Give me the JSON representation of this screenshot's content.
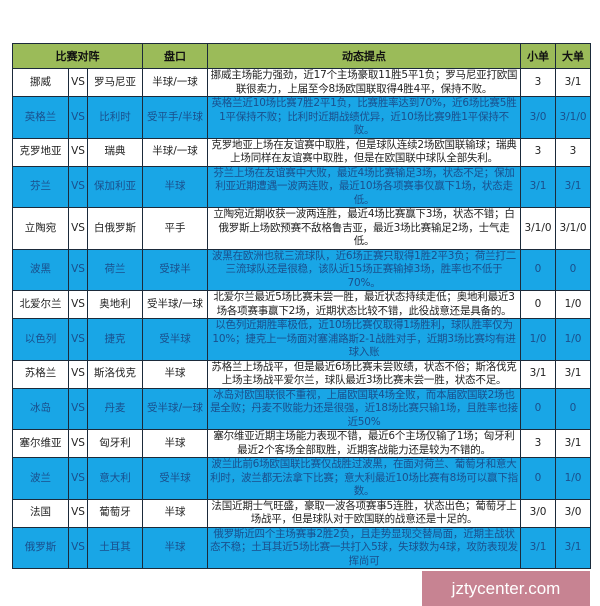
{
  "header": {
    "match": "比赛对阵",
    "handicap": "盘口",
    "notes": "动态提点",
    "small": "小单",
    "big": "大单"
  },
  "rows": [
    {
      "home": "挪威",
      "vs": "VS",
      "away": "罗马尼亚",
      "handicap": "半球/一球",
      "notes": "挪威主场能力强劲，近17个主场豪取11胜5平1负；罗马尼亚打欧国联很卖力，上届至今8场欧国联取得4胜4平，保持不败。",
      "small": "3",
      "big": "3/1",
      "highlight": false
    },
    {
      "home": "英格兰",
      "vs": "VS",
      "away": "比利时",
      "handicap": "受平手/半球",
      "notes": "英格兰近10场比赛7胜2平1负，比赛胜率达到70%，近6场比赛5胜1平保持不败；比利时近期战绩优异，近10场比赛9胜1平保持不败。",
      "small": "3/0",
      "big": "3/1/0",
      "highlight": true
    },
    {
      "home": "克罗地亚",
      "vs": "VS",
      "away": "瑞典",
      "handicap": "半球/一球",
      "notes": "克罗地亚上场在友谊赛中取胜，但是球队连续2场欧国联输球；瑞典上场同样在友谊赛中取胜，但是在欧国联中球队全部失利。",
      "small": "3",
      "big": "3",
      "highlight": false
    },
    {
      "home": "芬兰",
      "vs": "VS",
      "away": "保加利亚",
      "handicap": "半球",
      "notes": "芬兰上场在友谊赛中大败，最近4场比赛输足3场，状态不足；保加利亚近期遭遇一波两连败，最近10场各项赛事仅赢下1场，状态走低。",
      "small": "3/1",
      "big": "3/1",
      "highlight": true
    },
    {
      "home": "立陶宛",
      "vs": "VS",
      "away": "白俄罗斯",
      "handicap": "平手",
      "notes": "立陶宛近期收获一波两连胜，最近4场比赛赢下3场，状态不错；白俄罗斯上场欧预赛不敌格鲁吉亚，最近3场比赛输足2场，士气走低。",
      "small": "3/1/0",
      "big": "3/1/0",
      "highlight": false
    },
    {
      "home": "波黑",
      "vs": "VS",
      "away": "荷兰",
      "handicap": "受球半",
      "notes": "波黑在欧洲也就三流球队，近6场正赛只取得1胜2平3负；荷兰打二三流球队还是很稳，该队近15场正赛输掉3场，胜率也不低于70%。",
      "small": "0",
      "big": "0",
      "highlight": true
    },
    {
      "home": "北爱尔兰",
      "vs": "VS",
      "away": "奥地利",
      "handicap": "受半球/一球",
      "notes": "北爱尔兰最近5场比赛未尝一胜，最近状态持续走低；奥地利最近3场各项赛事赢下2场，近期状态比较不错，此役战意还是具备的。",
      "small": "0",
      "big": "1/0",
      "highlight": false
    },
    {
      "home": "以色列",
      "vs": "VS",
      "away": "捷克",
      "handicap": "受半球",
      "notes": "以色列近期胜率极低，近10场比赛仅取得1场胜利，球队胜率仅为10%；捷克上一场面对塞浦路斯2-1战胜对手，近期3场比赛均有进球入账",
      "small": "1/0",
      "big": "1/0",
      "highlight": true
    },
    {
      "home": "苏格兰",
      "vs": "VS",
      "away": "斯洛伐克",
      "handicap": "半球",
      "notes": "苏格兰上场战平，但是最近6场比赛未尝败绩，状态不俗；斯洛伐克上场主场战平爱尔兰，球队最近3场比赛未尝一胜，状态不足。",
      "small": "3/1",
      "big": "3/1",
      "highlight": false
    },
    {
      "home": "冰岛",
      "vs": "VS",
      "away": "丹麦",
      "handicap": "受半球/一球",
      "notes": "冰岛对欧国联很不重视，上届欧国联4场全败，而本届欧国联2场也是全败；丹麦不败能力还是很强，近18场比赛只输1场，且胜率也接近50%",
      "small": "0",
      "big": "0",
      "highlight": true
    },
    {
      "home": "塞尔维亚",
      "vs": "VS",
      "away": "匈牙利",
      "handicap": "半球",
      "notes": "塞尔维亚近期主场能力表现不错，最近6个主场仅输了1场；匈牙利最近2个客场全部取胜，近期客战能力还是较为不错的。",
      "small": "3",
      "big": "3/1",
      "highlight": false
    },
    {
      "home": "波兰",
      "vs": "VS",
      "away": "意大利",
      "handicap": "受半球",
      "notes": "波兰此前6场欧国联比赛仅战胜过波黑，在面对荷兰、葡萄牙和意大利时，波兰都无法拿下比赛；意大利最近10场比赛有8场可以赢下指数。",
      "small": "0",
      "big": "1/0",
      "highlight": true
    },
    {
      "home": "法国",
      "vs": "VS",
      "away": "葡萄牙",
      "handicap": "半球",
      "notes": "法国近期士气旺盛，豪取一波各项赛事5连胜，状态出色；葡萄牙上场战平，但是球队对于欧国联的战意还是十足的。",
      "small": "3/0",
      "big": "3/0",
      "highlight": false
    },
    {
      "home": "俄罗斯",
      "vs": "VS",
      "away": "土耳其",
      "handicap": "半球",
      "notes": "俄罗斯近四个主场赛事2胜2负，且走势显现交替局面，近期主战状态不稳；土耳其近5场比赛一共打入5球，失球数为4球，攻防表现发挥尚可",
      "small": "3/1",
      "big": "3/1",
      "highlight": true
    }
  ],
  "watermark": "jztycenter.com",
  "colors": {
    "header": "#9bbb59",
    "highlight_row": "#19a6e6",
    "highlight_text": "#1a4f8c"
  }
}
